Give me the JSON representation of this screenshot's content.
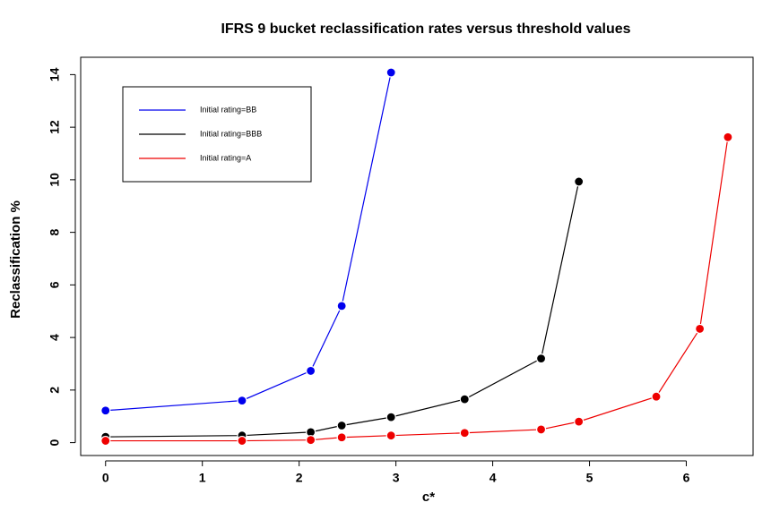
{
  "chart_data": {
    "type": "line",
    "title": "IFRS 9 bucket reclassification rates versus threshold values",
    "x_label": "c*",
    "y_label": "Reclassification %",
    "xlim": [
      -0.257,
      6.69
    ],
    "ylim": [
      -0.49,
      14.66
    ],
    "xticks": [
      0,
      1,
      2,
      3,
      4,
      5,
      6
    ],
    "yticks": [
      0,
      2,
      4,
      6,
      8,
      10,
      12,
      14
    ],
    "legend": "top-left",
    "series": [
      {
        "name": "Initial rating=BB",
        "color": "#0000ee",
        "x": [
          0,
          1.41,
          2.12,
          2.44,
          2.95
        ],
        "values": [
          1.22,
          1.6,
          2.73,
          5.2,
          14.08
        ]
      },
      {
        "name": "Initial rating=BBB",
        "color": "#000000",
        "x": [
          0,
          1.41,
          2.12,
          2.44,
          2.95,
          3.71,
          4.5,
          4.89
        ],
        "values": [
          0.22,
          0.27,
          0.4,
          0.65,
          0.97,
          1.65,
          3.2,
          9.93
        ]
      },
      {
        "name": "Initial rating=A",
        "color": "#ee0000",
        "x": [
          0,
          1.41,
          2.12,
          2.44,
          2.95,
          3.71,
          4.5,
          4.89,
          5.69,
          6.14,
          6.43
        ],
        "values": [
          0.07,
          0.07,
          0.1,
          0.2,
          0.27,
          0.37,
          0.5,
          0.8,
          1.75,
          4.33,
          11.62
        ]
      }
    ]
  }
}
